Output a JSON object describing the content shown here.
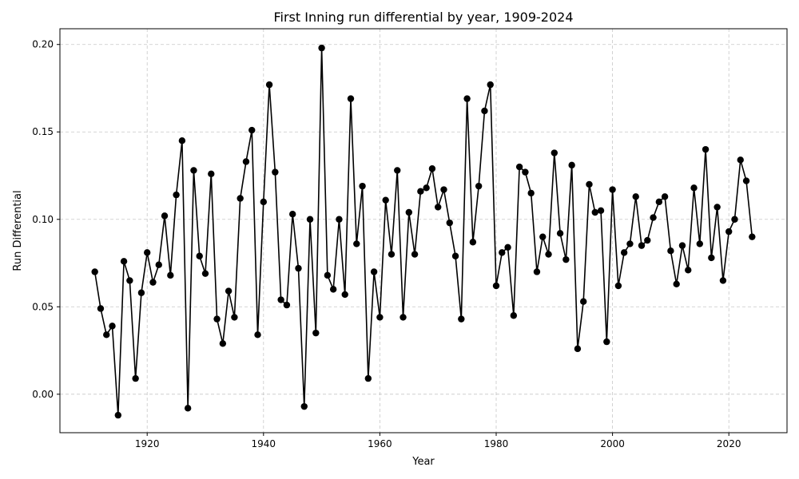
{
  "chart_data": {
    "type": "line",
    "title": "First Inning run differential by year, 1909-2024",
    "xlabel": "Year",
    "ylabel": "Run Differential",
    "xlim": [
      1905,
      2030
    ],
    "ylim": [
      -0.022,
      0.209
    ],
    "xticks": [
      1920,
      1940,
      1960,
      1980,
      2000,
      2020
    ],
    "yticks": [
      0.0,
      0.05,
      0.1,
      0.15,
      0.2
    ],
    "xtick_labels": [
      "1920",
      "1940",
      "1960",
      "1980",
      "2000",
      "2020"
    ],
    "ytick_labels": [
      "0.00",
      "0.05",
      "0.10",
      "0.15",
      "0.20"
    ],
    "grid": true,
    "series": [
      {
        "color": "#000000",
        "x": [
          1911,
          1912,
          1913,
          1914,
          1915,
          1916,
          1917,
          1918,
          1919,
          1920,
          1921,
          1922,
          1923,
          1924,
          1925,
          1926,
          1927,
          1928,
          1929,
          1930,
          1931,
          1932,
          1933,
          1934,
          1935,
          1936,
          1937,
          1938,
          1939,
          1940,
          1941,
          1942,
          1943,
          1944,
          1945,
          1946,
          1947,
          1948,
          1949,
          1950,
          1951,
          1952,
          1953,
          1954,
          1955,
          1956,
          1957,
          1958,
          1959,
          1960,
          1961,
          1962,
          1963,
          1964,
          1965,
          1966,
          1967,
          1968,
          1969,
          1970,
          1971,
          1972,
          1973,
          1974,
          1975,
          1976,
          1977,
          1978,
          1979,
          1980,
          1981,
          1982,
          1983,
          1984,
          1985,
          1986,
          1987,
          1988,
          1989,
          1990,
          1991,
          1992,
          1993,
          1994,
          1995,
          1996,
          1997,
          1998,
          1999,
          2000,
          2001,
          2002,
          2003,
          2004,
          2005,
          2006,
          2007,
          2008,
          2009,
          2010,
          2011,
          2012,
          2013,
          2014,
          2015,
          2016,
          2017,
          2018,
          2019,
          2020,
          2021,
          2022,
          2023,
          2024
        ],
        "y": [
          0.07,
          0.049,
          0.034,
          0.039,
          -0.012,
          0.076,
          0.065,
          0.009,
          0.058,
          0.081,
          0.064,
          0.074,
          0.102,
          0.068,
          0.114,
          0.145,
          -0.008,
          0.128,
          0.079,
          0.069,
          0.126,
          0.043,
          0.029,
          0.059,
          0.044,
          0.112,
          0.133,
          0.151,
          0.034,
          0.11,
          0.177,
          0.127,
          0.054,
          0.051,
          0.103,
          0.072,
          -0.007,
          0.1,
          0.035,
          0.198,
          0.068,
          0.06,
          0.1,
          0.057,
          0.169,
          0.086,
          0.119,
          0.009,
          0.07,
          0.044,
          0.111,
          0.08,
          0.128,
          0.044,
          0.104,
          0.08,
          0.116,
          0.118,
          0.129,
          0.107,
          0.117,
          0.098,
          0.079,
          0.043,
          0.169,
          0.087,
          0.119,
          0.162,
          0.177,
          0.062,
          0.081,
          0.084,
          0.045,
          0.13,
          0.127,
          0.115,
          0.07,
          0.09,
          0.08,
          0.138,
          0.092,
          0.077,
          0.131,
          0.026,
          0.053,
          0.12,
          0.104,
          0.105,
          0.03,
          0.117,
          0.062,
          0.081,
          0.086,
          0.113,
          0.085,
          0.088,
          0.101,
          0.11,
          0.113,
          0.082,
          0.063,
          0.085,
          0.071,
          0.118,
          0.086,
          0.14,
          0.078,
          0.107,
          0.065,
          0.093,
          0.1,
          0.134,
          0.122,
          0.09
        ]
      }
    ]
  }
}
